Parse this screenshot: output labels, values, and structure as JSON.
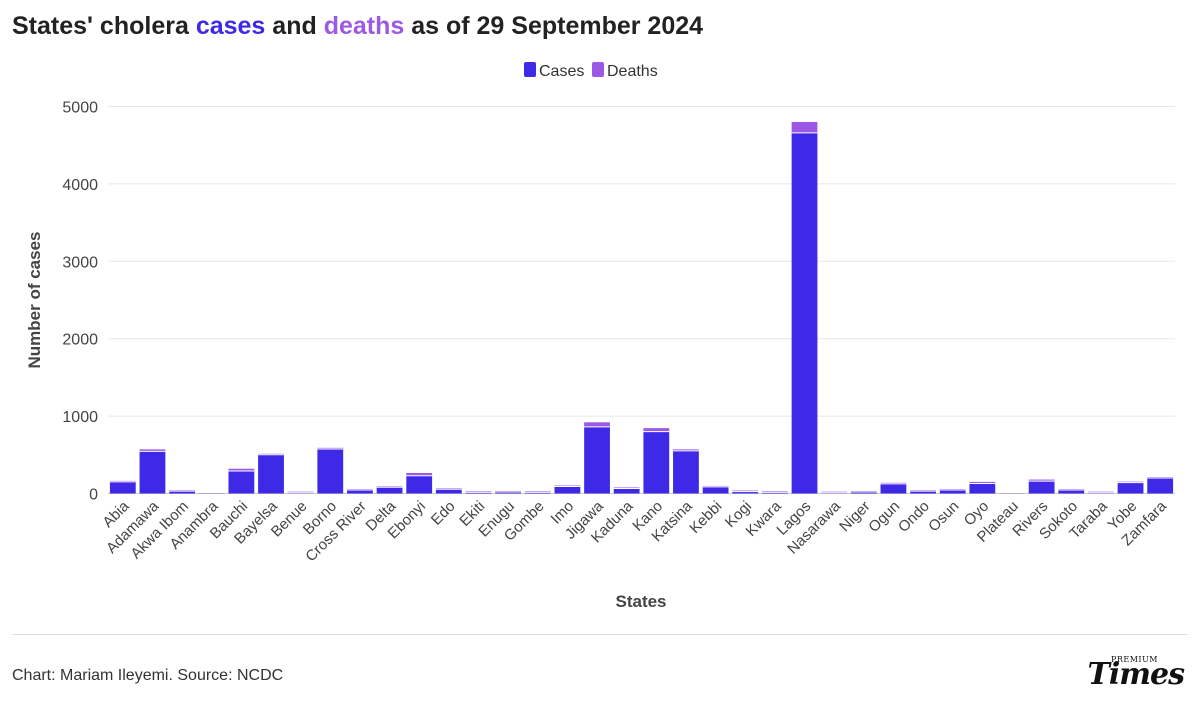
{
  "title": {
    "prefix": "States' cholera ",
    "cases_word": "cases",
    "middle": " and ",
    "deaths_word": "deaths",
    "suffix": " as of 29 September 2024"
  },
  "footer": {
    "credit": "Chart: Mariam Ileyemi. Source: NCDC",
    "logo_small": "PREMIUM",
    "logo_big": "Times"
  },
  "colors": {
    "cases": "#3d29e6",
    "deaths": "#9b59e6",
    "grid": "#e8e8e8"
  },
  "chart_data": {
    "type": "bar",
    "stacked": true,
    "title": "States' cholera cases and deaths as of 29 September 2024",
    "xlabel": "States",
    "ylabel": "Number of cases",
    "ylim": [
      0,
      5000
    ],
    "yticks": [
      0,
      1000,
      2000,
      3000,
      4000,
      5000
    ],
    "grid": true,
    "legend_position": "top-center",
    "categories": [
      "Abia",
      "Adamawa",
      "Akwa Ibom",
      "Anambra",
      "Bauchi",
      "Bayelsa",
      "Benue",
      "Borno",
      "Cross River",
      "Delta",
      "Ebonyi",
      "Edo",
      "Ekiti",
      "Enugu",
      "Gombe",
      "Imo",
      "Jigawa",
      "Kaduna",
      "Kano",
      "Katsina",
      "Kebbi",
      "Kogi",
      "Kwara",
      "Lagos",
      "Nasarawa",
      "Niger",
      "Ogun",
      "Ondo",
      "Osun",
      "Oyo",
      "Plateau",
      "Rivers",
      "Sokoto",
      "Taraba",
      "Yobe",
      "Zamfara"
    ],
    "series": [
      {
        "name": "Cases",
        "values": [
          150,
          545,
          30,
          3,
          290,
          500,
          10,
          575,
          45,
          80,
          230,
          55,
          15,
          20,
          15,
          90,
          860,
          65,
          800,
          550,
          85,
          25,
          15,
          4660,
          10,
          20,
          125,
          30,
          45,
          130,
          2,
          160,
          45,
          10,
          140,
          200
        ]
      },
      {
        "name": "Deaths",
        "values": [
          3,
          25,
          2,
          0,
          30,
          5,
          1,
          15,
          2,
          1,
          35,
          2,
          1,
          1,
          1,
          2,
          60,
          2,
          45,
          20,
          3,
          1,
          1,
          140,
          1,
          1,
          3,
          1,
          2,
          20,
          0,
          20,
          2,
          1,
          2,
          3
        ]
      }
    ]
  }
}
